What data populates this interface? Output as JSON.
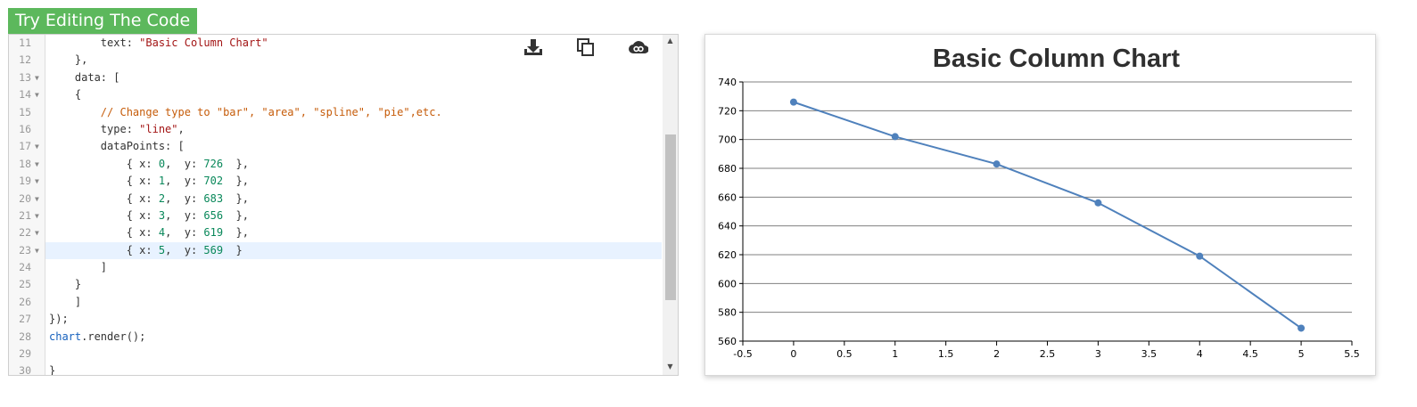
{
  "badge": {
    "label": "Try Editing The Code"
  },
  "editor": {
    "toolbar": [
      {
        "name": "download-icon",
        "tooltip": "Download"
      },
      {
        "name": "copy-icon",
        "tooltip": "Copy"
      },
      {
        "name": "cloud-link-icon",
        "tooltip": "Share"
      }
    ],
    "active_line": 23,
    "lines": [
      {
        "num": "11",
        "fold": false,
        "tokens": [
          {
            "t": "        text: "
          },
          {
            "t": "\"Basic Column Chart\"",
            "c": "str"
          }
        ]
      },
      {
        "num": "12",
        "fold": false,
        "tokens": [
          {
            "t": "    },"
          }
        ]
      },
      {
        "num": "13",
        "fold": true,
        "tokens": [
          {
            "t": "    data: ["
          }
        ]
      },
      {
        "num": "14",
        "fold": true,
        "tokens": [
          {
            "t": "    {"
          }
        ]
      },
      {
        "num": "15",
        "fold": false,
        "tokens": [
          {
            "t": "        "
          },
          {
            "t": "// Change type to \"bar\", \"area\", \"spline\", \"pie\",etc.",
            "c": "cmt"
          }
        ]
      },
      {
        "num": "16",
        "fold": false,
        "tokens": [
          {
            "t": "        type: "
          },
          {
            "t": "\"line\"",
            "c": "str"
          },
          {
            "t": ","
          }
        ]
      },
      {
        "num": "17",
        "fold": true,
        "tokens": [
          {
            "t": "        dataPoints: ["
          }
        ]
      },
      {
        "num": "18",
        "fold": true,
        "tokens": [
          {
            "t": "            { x: "
          },
          {
            "t": "0",
            "c": "num"
          },
          {
            "t": ",  y: "
          },
          {
            "t": "726",
            "c": "num"
          },
          {
            "t": "  },"
          }
        ]
      },
      {
        "num": "19",
        "fold": true,
        "tokens": [
          {
            "t": "            { x: "
          },
          {
            "t": "1",
            "c": "num"
          },
          {
            "t": ",  y: "
          },
          {
            "t": "702",
            "c": "num"
          },
          {
            "t": "  },"
          }
        ]
      },
      {
        "num": "20",
        "fold": true,
        "tokens": [
          {
            "t": "            { x: "
          },
          {
            "t": "2",
            "c": "num"
          },
          {
            "t": ",  y: "
          },
          {
            "t": "683",
            "c": "num"
          },
          {
            "t": "  },"
          }
        ]
      },
      {
        "num": "21",
        "fold": true,
        "tokens": [
          {
            "t": "            { x: "
          },
          {
            "t": "3",
            "c": "num"
          },
          {
            "t": ",  y: "
          },
          {
            "t": "656",
            "c": "num"
          },
          {
            "t": "  },"
          }
        ]
      },
      {
        "num": "22",
        "fold": true,
        "tokens": [
          {
            "t": "            { x: "
          },
          {
            "t": "4",
            "c": "num"
          },
          {
            "t": ",  y: "
          },
          {
            "t": "619",
            "c": "num"
          },
          {
            "t": "  },"
          }
        ]
      },
      {
        "num": "23",
        "fold": true,
        "tokens": [
          {
            "t": "            { x: "
          },
          {
            "t": "5",
            "c": "num"
          },
          {
            "t": ",  y: "
          },
          {
            "t": "569",
            "c": "num"
          },
          {
            "t": "  }"
          }
        ]
      },
      {
        "num": "24",
        "fold": false,
        "tokens": [
          {
            "t": "        ]"
          }
        ]
      },
      {
        "num": "25",
        "fold": false,
        "tokens": [
          {
            "t": "    }"
          }
        ]
      },
      {
        "num": "26",
        "fold": false,
        "tokens": [
          {
            "t": "    ]"
          }
        ]
      },
      {
        "num": "27",
        "fold": false,
        "tokens": [
          {
            "t": "});"
          }
        ]
      },
      {
        "num": "28",
        "fold": false,
        "tokens": [
          {
            "t": "chart",
            "c": "obj"
          },
          {
            "t": ".render();"
          }
        ]
      },
      {
        "num": "29",
        "fold": false,
        "tokens": [
          {
            "t": ""
          }
        ]
      },
      {
        "num": "30",
        "fold": false,
        "tokens": [
          {
            "t": "}"
          }
        ]
      }
    ]
  },
  "colors": {
    "badge": "#5cb85c",
    "line": "#4f81bc",
    "grid": "#808080",
    "string": "#a31515",
    "number": "#09885a",
    "comment": "#c65c0a"
  },
  "chart_data": {
    "type": "line",
    "title": "Basic Column Chart",
    "x": [
      0,
      1,
      2,
      3,
      4,
      5
    ],
    "series": [
      {
        "values": [
          726,
          702,
          683,
          656,
          619,
          569
        ]
      }
    ],
    "xlim": [
      -0.5,
      5.5
    ],
    "ylim": [
      560,
      740
    ],
    "x_ticks": [
      "-0.5",
      "0",
      "0.5",
      "1",
      "1.5",
      "2",
      "2.5",
      "3",
      "3.5",
      "4",
      "4.5",
      "5",
      "5.5"
    ],
    "y_ticks": [
      "560",
      "580",
      "600",
      "620",
      "640",
      "660",
      "680",
      "700",
      "720",
      "740"
    ],
    "grid": true,
    "xlabel": "",
    "ylabel": ""
  }
}
